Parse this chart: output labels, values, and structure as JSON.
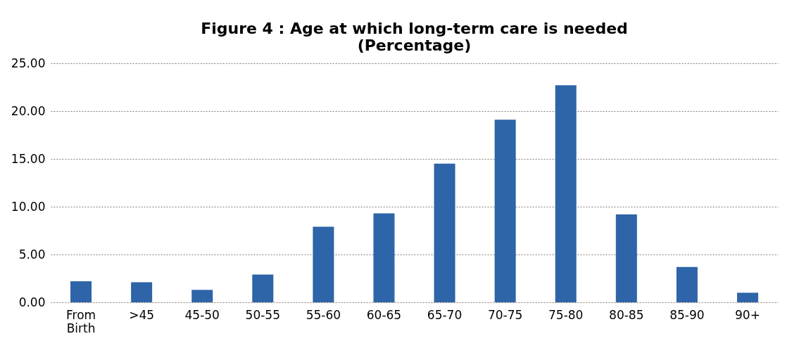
{
  "chart_data": {
    "type": "bar",
    "title": "Figure  4 : Age at which long-term care is needed\n(Percentage)",
    "categories": [
      "From\nBirth",
      ">45",
      "45-50",
      "50-55",
      "55-60",
      "60-65",
      "65-70",
      "70-75",
      "75-80",
      "80-85",
      "85-90",
      "90+"
    ],
    "values": [
      2.2,
      2.1,
      1.3,
      2.9,
      7.9,
      9.3,
      14.5,
      19.1,
      22.7,
      9.2,
      3.7,
      1.0
    ],
    "color": "#2e64a8",
    "ylim": [
      0,
      25
    ],
    "yticks": [
      {
        "value": 0,
        "label": "0.00"
      },
      {
        "value": 5,
        "label": "5.00"
      },
      {
        "value": 10,
        "label": "10.00"
      },
      {
        "value": 15,
        "label": "15.00"
      },
      {
        "value": 20,
        "label": "20.00"
      },
      {
        "value": 25,
        "label": "25.00"
      }
    ],
    "grid": "y"
  }
}
